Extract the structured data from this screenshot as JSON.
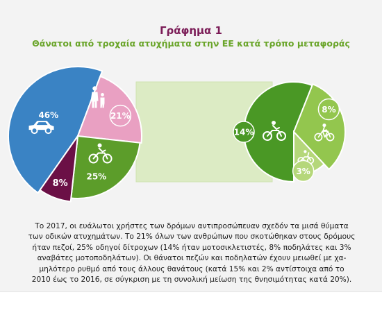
{
  "header": {
    "title": "Γράφημα 1",
    "subtitle": "Θάνατοι από τροχαία ατυχήματα στην ΕΕ κατά τρόπο μεταφοράς"
  },
  "chart_data": [
    {
      "type": "pie",
      "categories": [
        "",
        "",
        "",
        ""
      ],
      "values": [
        46,
        21,
        25,
        8
      ],
      "labels": [
        "46%",
        "21%",
        "25%",
        "8%"
      ],
      "icons": [
        "car-icon",
        "pedestrian-icon",
        "motorcycle-icon",
        ""
      ],
      "colors": [
        "#3a83c4",
        "#e9a0c2",
        "#5c9d2a",
        "#6b1046"
      ]
    },
    {
      "type": "pie",
      "categories": [
        "",
        "",
        ""
      ],
      "values": [
        14,
        8,
        3
      ],
      "labels": [
        "14%",
        "8%",
        "3%"
      ],
      "icons": [
        "motorcycle-icon",
        "bicycle-icon",
        "moped-icon"
      ],
      "colors": [
        "#4a9825",
        "#93c64e",
        "#b5d77a"
      ]
    }
  ],
  "caption": {
    "lines": [
      "Το 2017, οι ευάλωτοι χρήστες των δρόμων αντιπροσώπευαν σχεδόν τα μισά θύματα",
      "των οδικών ατυχημάτων. Το 21% όλων των ανθρώπων που σκοτώθηκαν στους δρόμους",
      "ήταν πεζοί, 25% οδηγοί δίτροχων (14% ήταν μοτοσικλετιστές, 8% ποδηλάτες και 3%",
      "αναβάτες μοτοποδηλάτων). Οι θάνατοι πεζών και ποδηλατών έχουν μειωθεί με χα-",
      "μηλότερο ρυθμό από τους άλλους θανάτους (κατά 15% και 2% αντίστοιχα από το",
      "2010 έως το 2016, σε σύγκριση με τη συνολική μείωση της θνησιμότητας κατά 20%)."
    ]
  }
}
